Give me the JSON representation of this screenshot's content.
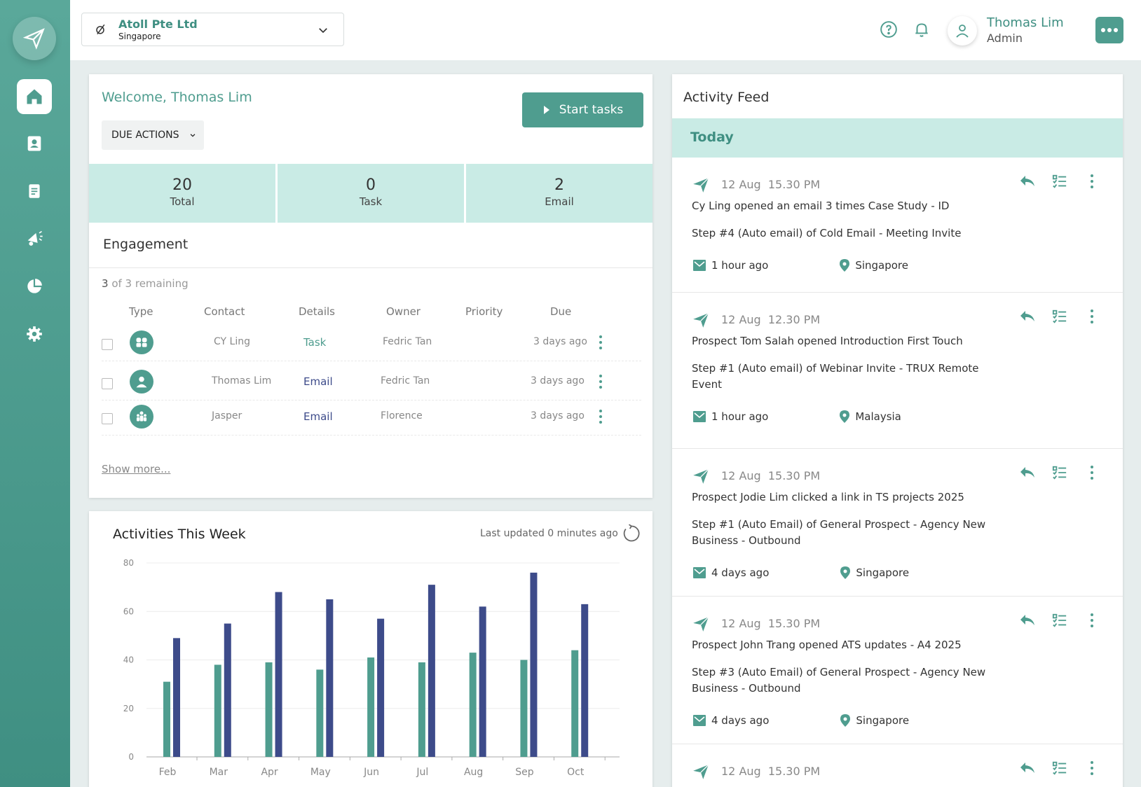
{
  "company": {
    "name": "Atoll Pte Ltd",
    "location": "Singapore"
  },
  "user": {
    "name": "Thomas Lim",
    "role": "Admin"
  },
  "welcome": {
    "title": "Welcome, Thomas Lim",
    "start_button": "Start tasks",
    "due_select": "DUE ACTIONS",
    "stats": [
      {
        "value": "20",
        "label": "Total"
      },
      {
        "value": "0",
        "label": "Task"
      },
      {
        "value": "2",
        "label": "Email"
      }
    ]
  },
  "engagement": {
    "title": "Engagement",
    "remaining_count": "3",
    "remaining_text": "of 3 remaining",
    "columns": [
      "Type",
      "Contact",
      "Details",
      "Owner",
      "Priority",
      "Due"
    ],
    "rows": [
      {
        "type_icon": "group-icon",
        "contact": "CY Ling",
        "details": "Task",
        "owner": "Fedric Tan",
        "priority": "",
        "due": "3 days ago"
      },
      {
        "type_icon": "person-icon",
        "contact": "Thomas Lim",
        "details": "Email",
        "owner": "Fedric Tan",
        "priority": "",
        "due": "3 days ago"
      },
      {
        "type_icon": "family-icon",
        "contact": "Jasper",
        "details": "Email",
        "owner": "Florence",
        "priority": "",
        "due": "3 days ago"
      }
    ],
    "show_more": "Show more..."
  },
  "activities": {
    "title": "Activities This Week",
    "last_updated": "Last updated 0 minutes ago"
  },
  "chart_data": {
    "type": "bar",
    "categories": [
      "Feb",
      "Mar",
      "Apr",
      "May",
      "Jun",
      "Jul",
      "Aug",
      "Sep",
      "Oct"
    ],
    "series": [
      {
        "values": [
          31,
          38,
          39,
          36,
          41,
          39,
          43,
          40,
          44
        ],
        "color": "#4f9d8f"
      },
      {
        "values": [
          49,
          55,
          68,
          65,
          57,
          71,
          62,
          76,
          63
        ],
        "color": "#3d4b8a"
      }
    ],
    "yticks": [
      "0",
      "20",
      "40",
      "60",
      "80"
    ],
    "ylim": [
      0,
      80
    ],
    "grid": true
  },
  "feed": {
    "title": "Activity Feed",
    "today_label": "Today",
    "items": [
      {
        "date": "12 Aug",
        "time": "15.30 PM",
        "line1": "Cy Ling opened an email 3 times Case Study - ID",
        "line2": "Step #4 (Auto email) of Cold Email - Meeting Invite",
        "ago": "1 hour ago",
        "location": "Singapore"
      },
      {
        "date": "12 Aug",
        "time": "12.30 PM",
        "line1": "Prospect Tom Salah opened Introduction First Touch",
        "line2": "Step #1 (Auto email) of Webinar Invite - TRUX Remote Event",
        "ago": "1 hour ago",
        "location": "Malaysia"
      },
      {
        "date": "12 Aug",
        "time": "15.30 PM",
        "line1": "Prospect Jodie Lim clicked a link in TS projects 2025",
        "line2": "Step #1 (Auto Email) of General Prospect - Agency New Business - Outbound",
        "ago": "4 days ago",
        "location": "Singapore"
      },
      {
        "date": "12 Aug",
        "time": "15.30 PM",
        "line1": "Prospect John Trang opened ATS updates - A4 2025",
        "line2": "Step #3 (Auto Email) of General Prospect - Agency New Business - Outbound",
        "ago": "4 days ago",
        "location": "Singapore"
      },
      {
        "date": "12 Aug",
        "time": "15.30 PM",
        "line1": "",
        "line2": "",
        "ago": "",
        "location": ""
      }
    ]
  },
  "colors": {
    "accent": "#4f9d8f",
    "accent_light": "#c9ebe5",
    "navy": "#3d4b8a"
  },
  "icons": [
    "paper-plane-icon",
    "home-icon",
    "contacts-icon",
    "document-icon",
    "megaphone-icon",
    "pie-chart-icon",
    "gear-icon",
    "help-icon",
    "bell-icon",
    "user-icon",
    "more-icon",
    "reply-icon",
    "checklist-icon",
    "kebab-icon",
    "mail-icon",
    "location-pin-icon",
    "refresh-icon"
  ]
}
